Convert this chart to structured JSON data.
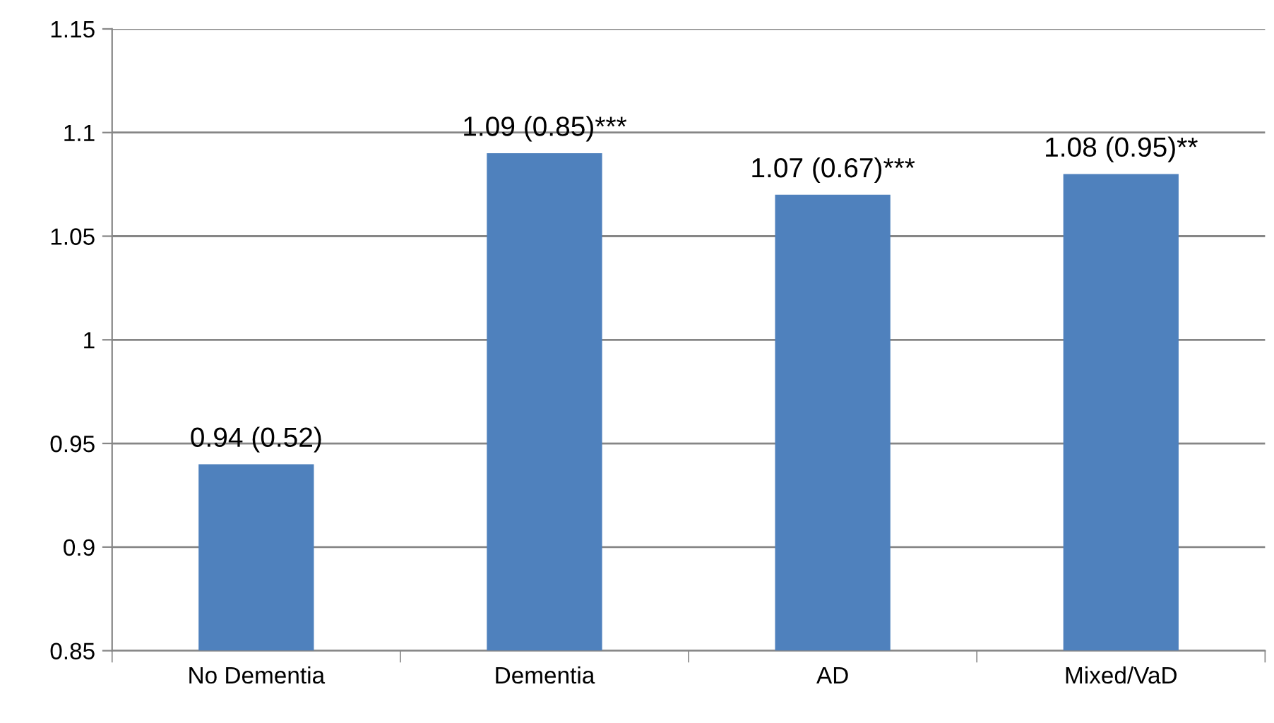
{
  "chart_data": {
    "type": "bar",
    "categories": [
      "No Dementia",
      "Dementia",
      "AD",
      "Mixed/VaD"
    ],
    "values": [
      0.94,
      1.09,
      1.07,
      1.08
    ],
    "value_labels": [
      "0.94 (0.52)",
      "1.09 (0.85)***",
      "1.07 (0.67)***",
      "1.08 (0.95)**"
    ],
    "color": "#4f81bd",
    "ylim": [
      0.85,
      1.15
    ],
    "yticks": [
      0.85,
      0.9,
      0.95,
      1,
      1.05,
      1.1,
      1.15
    ],
    "grid": "y",
    "legend": false
  }
}
